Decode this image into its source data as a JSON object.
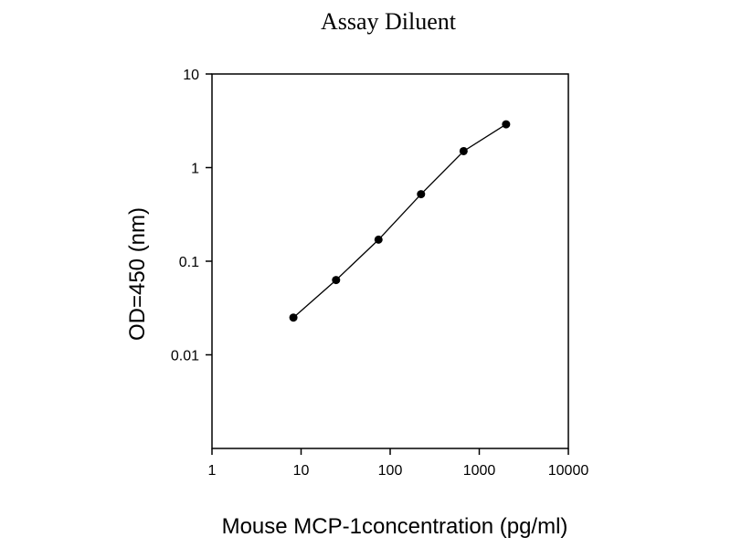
{
  "chart_data": {
    "type": "scatter",
    "title": "Assay Diluent",
    "xlabel": "Mouse MCP-1concentration (pg/ml)",
    "ylabel": "OD=450 (nm)",
    "xscale": "log",
    "yscale": "log",
    "xlim": [
      1,
      10000
    ],
    "ylim": [
      0.001,
      10
    ],
    "x_ticks": [
      1,
      10,
      100,
      1000,
      10000
    ],
    "x_tick_labels": [
      "1",
      "10",
      "100",
      "1000",
      "10000"
    ],
    "y_ticks": [
      0.01,
      0.1,
      1,
      10
    ],
    "y_tick_labels": [
      "0.01",
      "0.1",
      "1",
      "10"
    ],
    "grid": false,
    "legend": "none",
    "connected": true,
    "series": [
      {
        "x": [
          8.2,
          24.7,
          74,
          222,
          667,
          2000
        ],
        "y": [
          0.025,
          0.063,
          0.17,
          0.52,
          1.5,
          2.9
        ]
      }
    ]
  }
}
